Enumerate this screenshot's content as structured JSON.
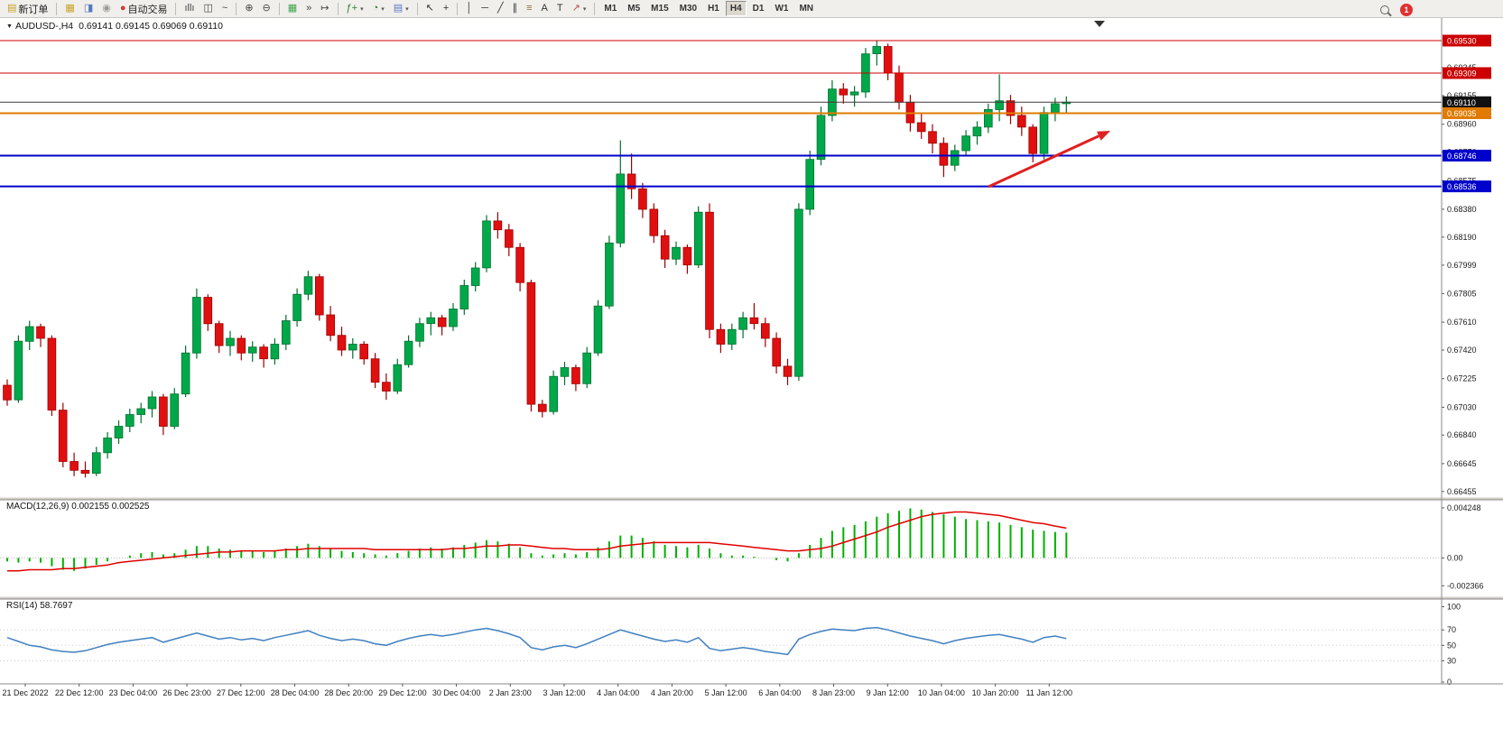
{
  "toolbar": {
    "badge_count": "1",
    "active_timeframe": "H4",
    "timeframes": [
      "M1",
      "M5",
      "M15",
      "M30",
      "H1",
      "H4",
      "D1",
      "W1",
      "MN"
    ],
    "buttons": [
      {
        "name": "new-order-button",
        "icon": "order-ticket-icon",
        "glyph": "▤",
        "glyph_color": "#c9a227",
        "label": "新订单"
      },
      {
        "type": "sep"
      },
      {
        "name": "new-chart-button",
        "icon": "new-chart-icon",
        "glyph": "▦",
        "glyph_color": "#c9a227"
      },
      {
        "name": "profiles-button",
        "icon": "profiles-icon",
        "glyph": "◨",
        "glyph_color": "#5a77c0"
      },
      {
        "name": "refresh-button",
        "icon": "refresh-icon",
        "glyph": "◉",
        "glyph_color": "#9a9a9a"
      },
      {
        "name": "auto-trading-button",
        "icon": "auto-trading-icon",
        "glyph": "●",
        "glyph_color": "#d03838",
        "label": "自动交易"
      },
      {
        "type": "sep"
      },
      {
        "name": "bar-chart-button",
        "icon": "bar-chart-icon",
        "glyph": "ıllı",
        "glyph_color": "#444444"
      },
      {
        "name": "candlestick-chart-button",
        "icon": "candlestick-chart-icon",
        "glyph": "◫",
        "glyph_color": "#444444"
      },
      {
        "name": "line-chart-button",
        "icon": "line-chart-icon",
        "glyph": "~",
        "glyph_color": "#444444"
      },
      {
        "type": "sep"
      },
      {
        "name": "zoom-in-button",
        "icon": "zoom-in-icon",
        "glyph": "⊕",
        "glyph_color": "#444444"
      },
      {
        "name": "zoom-out-button",
        "icon": "zoom-out-icon",
        "glyph": "⊖",
        "glyph_color": "#444444"
      },
      {
        "type": "sep"
      },
      {
        "name": "tile-windows-button",
        "icon": "tile-windows-icon",
        "glyph": "▦",
        "glyph_color": "#3fa34d"
      },
      {
        "name": "auto-scroll-button",
        "icon": "auto-scroll-icon",
        "glyph": "»",
        "glyph_color": "#444444"
      },
      {
        "name": "chart-shift-button",
        "icon": "chart-shift-icon",
        "glyph": "↦",
        "glyph_color": "#444444"
      },
      {
        "type": "sep"
      },
      {
        "name": "indicators-button",
        "icon": "indicators-icon",
        "glyph": "ƒ+",
        "glyph_color": "#2e7d32",
        "dropdown": true
      },
      {
        "name": "periods-button",
        "icon": "periods-clock-icon",
        "glyph": "◔",
        "glyph_color": "#2e7d32",
        "dropdown": true
      },
      {
        "name": "templates-button",
        "icon": "templates-icon",
        "glyph": "▤",
        "glyph_color": "#5a77c0",
        "dropdown": true
      },
      {
        "type": "sep"
      },
      {
        "name": "cursor-button",
        "icon": "cursor-icon",
        "glyph": "↖",
        "glyph_color": "#333333"
      },
      {
        "name": "crosshair-button",
        "icon": "crosshair-icon",
        "glyph": "+",
        "glyph_color": "#333333"
      },
      {
        "type": "sep"
      },
      {
        "name": "vertical-line-button",
        "icon": "vertical-line-icon",
        "glyph": "│",
        "glyph_color": "#333333"
      },
      {
        "name": "horizontal-line-button",
        "icon": "horizontal-line-icon",
        "glyph": "─",
        "glyph_color": "#333333"
      },
      {
        "name": "trendline-button",
        "icon": "trendline-icon",
        "glyph": "╱",
        "glyph_color": "#333333"
      },
      {
        "name": "channel-button",
        "icon": "equidistant-channel-icon",
        "glyph": "∥",
        "glyph_color": "#333333"
      },
      {
        "name": "fibonacci-button",
        "icon": "fibonacci-icon",
        "glyph": "≡",
        "glyph_color": "#8a6d3b"
      },
      {
        "name": "text-button",
        "icon": "text-icon",
        "glyph": "A",
        "glyph_color": "#333333"
      },
      {
        "name": "label-button",
        "icon": "text-label-icon",
        "glyph": "T",
        "glyph_color": "#333333"
      },
      {
        "name": "shapes-button",
        "icon": "arrow-object-icon",
        "glyph": "↗",
        "glyph_color": "#c05050",
        "dropdown": true
      },
      {
        "type": "sep"
      }
    ]
  },
  "chart": {
    "collapse_icon": "▼",
    "symbol_title": "AUDUSD-,H4",
    "ohlc_text": "0.69141 0.69145 0.69069 0.69110",
    "macd_label": "MACD(12,26,9) 0.002155 0.002525",
    "rsi_label": "RSI(14) 58.7697"
  },
  "chart_data": {
    "type": "candlestick",
    "symbol": "AUDUSD",
    "timeframe": "H4",
    "ylim": [
      0.66417,
      0.69684
    ],
    "price_ticks": [
      "0.69345",
      "0.69155",
      "0.68960",
      "0.68770",
      "0.68575",
      "0.68380",
      "0.68190",
      "0.67999",
      "0.67805",
      "0.67610",
      "0.67420",
      "0.67225",
      "0.67030",
      "0.66840",
      "0.66645",
      "0.66455"
    ],
    "price_lines": [
      {
        "value": 0.6953,
        "color": "#cc0000",
        "width": 1,
        "box": "#cc0000"
      },
      {
        "value": 0.69309,
        "color": "#cc0000",
        "width": 1,
        "box": "#cc0000"
      },
      {
        "value": 0.6911,
        "color": "#3a3a3a",
        "width": 1,
        "box": "#111111",
        "current": true
      },
      {
        "value": 0.69035,
        "color": "#e07b00",
        "width": 2,
        "box": "#e07b00"
      },
      {
        "value": 0.68746,
        "color": "#0000cc",
        "width": 2,
        "box": "#0000cc"
      },
      {
        "value": 0.68536,
        "color": "#0000cc",
        "width": 2,
        "box": "#0000cc"
      }
    ],
    "candles": [
      [
        0.6718,
        0.6722,
        0.6704,
        0.6708
      ],
      [
        0.6708,
        0.6752,
        0.6706,
        0.6748
      ],
      [
        0.6748,
        0.6762,
        0.6742,
        0.6758
      ],
      [
        0.6758,
        0.676,
        0.6744,
        0.675
      ],
      [
        0.675,
        0.6752,
        0.6697,
        0.6701
      ],
      [
        0.6701,
        0.6706,
        0.6662,
        0.6666
      ],
      [
        0.6666,
        0.6672,
        0.6656,
        0.666
      ],
      [
        0.666,
        0.6666,
        0.6655,
        0.6658
      ],
      [
        0.6658,
        0.6676,
        0.6656,
        0.6672
      ],
      [
        0.6672,
        0.6686,
        0.6668,
        0.6682
      ],
      [
        0.6682,
        0.6694,
        0.6678,
        0.669
      ],
      [
        0.669,
        0.6702,
        0.6686,
        0.6698
      ],
      [
        0.6698,
        0.6706,
        0.6692,
        0.6702
      ],
      [
        0.6702,
        0.6714,
        0.6696,
        0.671
      ],
      [
        0.671,
        0.6712,
        0.6684,
        0.669
      ],
      [
        0.669,
        0.6716,
        0.6688,
        0.6712
      ],
      [
        0.6712,
        0.6745,
        0.671,
        0.674
      ],
      [
        0.674,
        0.6784,
        0.6736,
        0.6778
      ],
      [
        0.6778,
        0.678,
        0.6755,
        0.676
      ],
      [
        0.676,
        0.6762,
        0.674,
        0.6745
      ],
      [
        0.6745,
        0.6755,
        0.6738,
        0.675
      ],
      [
        0.675,
        0.6752,
        0.6735,
        0.674
      ],
      [
        0.674,
        0.6748,
        0.6734,
        0.6744
      ],
      [
        0.6744,
        0.6746,
        0.673,
        0.6736
      ],
      [
        0.6736,
        0.675,
        0.6732,
        0.6746
      ],
      [
        0.6746,
        0.6766,
        0.6742,
        0.6762
      ],
      [
        0.6762,
        0.6784,
        0.6758,
        0.678
      ],
      [
        0.678,
        0.6796,
        0.6776,
        0.6792
      ],
      [
        0.6792,
        0.6794,
        0.6762,
        0.6766
      ],
      [
        0.6766,
        0.6772,
        0.6748,
        0.6752
      ],
      [
        0.6752,
        0.6758,
        0.6738,
        0.6742
      ],
      [
        0.6742,
        0.675,
        0.6736,
        0.6746
      ],
      [
        0.6746,
        0.6748,
        0.6732,
        0.6736
      ],
      [
        0.6736,
        0.674,
        0.6716,
        0.672
      ],
      [
        0.672,
        0.6726,
        0.6708,
        0.6714
      ],
      [
        0.6714,
        0.6736,
        0.6712,
        0.6732
      ],
      [
        0.6732,
        0.6752,
        0.673,
        0.6748
      ],
      [
        0.6748,
        0.6764,
        0.6744,
        0.676
      ],
      [
        0.676,
        0.6768,
        0.6752,
        0.6764
      ],
      [
        0.6764,
        0.6766,
        0.6752,
        0.6758
      ],
      [
        0.6758,
        0.6774,
        0.6755,
        0.677
      ],
      [
        0.677,
        0.679,
        0.6766,
        0.6786
      ],
      [
        0.6786,
        0.6802,
        0.6782,
        0.6798
      ],
      [
        0.6798,
        0.6834,
        0.6795,
        0.683
      ],
      [
        0.683,
        0.6836,
        0.6818,
        0.6824
      ],
      [
        0.6824,
        0.6828,
        0.6806,
        0.6812
      ],
      [
        0.6812,
        0.6815,
        0.6782,
        0.6788
      ],
      [
        0.6788,
        0.679,
        0.67,
        0.6705
      ],
      [
        0.6705,
        0.6708,
        0.6696,
        0.67
      ],
      [
        0.67,
        0.6728,
        0.6698,
        0.6724
      ],
      [
        0.6724,
        0.6734,
        0.6718,
        0.673
      ],
      [
        0.673,
        0.6732,
        0.6714,
        0.6719
      ],
      [
        0.6719,
        0.6744,
        0.6716,
        0.674
      ],
      [
        0.674,
        0.6776,
        0.6738,
        0.6772
      ],
      [
        0.6772,
        0.682,
        0.677,
        0.6815
      ],
      [
        0.6815,
        0.6885,
        0.6812,
        0.6862
      ],
      [
        0.6862,
        0.6876,
        0.6845,
        0.6852
      ],
      [
        0.6852,
        0.6856,
        0.6832,
        0.6838
      ],
      [
        0.6838,
        0.6842,
        0.6815,
        0.682
      ],
      [
        0.682,
        0.6824,
        0.6798,
        0.6804
      ],
      [
        0.6804,
        0.6816,
        0.68,
        0.6812
      ],
      [
        0.6812,
        0.6814,
        0.6794,
        0.68
      ],
      [
        0.68,
        0.684,
        0.6798,
        0.6836
      ],
      [
        0.6836,
        0.6842,
        0.675,
        0.6756
      ],
      [
        0.6756,
        0.676,
        0.674,
        0.6746
      ],
      [
        0.6746,
        0.676,
        0.6742,
        0.6756
      ],
      [
        0.6756,
        0.6768,
        0.675,
        0.6764
      ],
      [
        0.6764,
        0.6774,
        0.6756,
        0.676
      ],
      [
        0.676,
        0.6764,
        0.6744,
        0.675
      ],
      [
        0.675,
        0.6754,
        0.6726,
        0.6731
      ],
      [
        0.6731,
        0.6736,
        0.6718,
        0.6724
      ],
      [
        0.6724,
        0.6842,
        0.6721,
        0.6838
      ],
      [
        0.6838,
        0.6878,
        0.6834,
        0.6872
      ],
      [
        0.6872,
        0.6908,
        0.6868,
        0.6902
      ],
      [
        0.6902,
        0.6926,
        0.6898,
        0.692
      ],
      [
        0.692,
        0.6924,
        0.691,
        0.6916
      ],
      [
        0.6916,
        0.6922,
        0.6908,
        0.6918
      ],
      [
        0.6918,
        0.6948,
        0.6914,
        0.6944
      ],
      [
        0.6944,
        0.6953,
        0.6936,
        0.6949
      ],
      [
        0.6949,
        0.6951,
        0.6926,
        0.6931
      ],
      [
        0.6931,
        0.6936,
        0.6906,
        0.6911
      ],
      [
        0.6911,
        0.6916,
        0.6891,
        0.6897
      ],
      [
        0.6897,
        0.6903,
        0.6886,
        0.6891
      ],
      [
        0.6891,
        0.6896,
        0.6876,
        0.6883
      ],
      [
        0.6883,
        0.6887,
        0.686,
        0.6868
      ],
      [
        0.6868,
        0.6882,
        0.6864,
        0.6878
      ],
      [
        0.6878,
        0.6892,
        0.6874,
        0.6888
      ],
      [
        0.6888,
        0.6898,
        0.6882,
        0.6894
      ],
      [
        0.6894,
        0.691,
        0.689,
        0.6906
      ],
      [
        0.6906,
        0.693,
        0.6898,
        0.6912
      ],
      [
        0.6912,
        0.6916,
        0.6896,
        0.6902
      ],
      [
        0.6902,
        0.6908,
        0.6888,
        0.6894
      ],
      [
        0.6894,
        0.6896,
        0.687,
        0.6876
      ],
      [
        0.6876,
        0.6908,
        0.6872,
        0.6904
      ],
      [
        0.6904,
        0.6914,
        0.6898,
        0.691
      ],
      [
        0.691,
        0.6915,
        0.6904,
        0.6911
      ]
    ],
    "time_labels": [
      "21 Dec 2022",
      "22 Dec 12:00",
      "23 Dec 04:00",
      "26 Dec 23:00",
      "27 Dec 12:00",
      "28 Dec 04:00",
      "28 Dec 20:00",
      "29 Dec 12:00",
      "30 Dec 04:00",
      "2 Jan 23:00",
      "3 Jan 12:00",
      "4 Jan 04:00",
      "4 Jan 20:00",
      "5 Jan 12:00",
      "6 Jan 04:00",
      "8 Jan 23:00",
      "9 Jan 12:00",
      "10 Jan 04:00",
      "10 Jan 20:00",
      "11 Jan 12:00"
    ],
    "macd": {
      "ylim": [
        -0.00326,
        0.00493
      ],
      "scale_labels": [
        "0.004248",
        "0.00",
        "-0.002366"
      ],
      "histogram": [
        -0.0003,
        -0.0004,
        -0.0003,
        -0.0004,
        -0.0007,
        -0.001,
        -0.0011,
        -0.0009,
        -0.0006,
        -0.0003,
        0.0,
        0.0002,
        0.0004,
        0.0005,
        0.0003,
        0.0004,
        0.0007,
        0.001,
        0.001,
        0.0008,
        0.0007,
        0.0006,
        0.0006,
        0.0005,
        0.0006,
        0.0008,
        0.001,
        0.0012,
        0.001,
        0.0008,
        0.0006,
        0.0005,
        0.0004,
        0.0003,
        0.0002,
        0.0004,
        0.0006,
        0.0008,
        0.0009,
        0.0008,
        0.0009,
        0.0011,
        0.0013,
        0.0015,
        0.0014,
        0.0012,
        0.0009,
        0.0004,
        0.0002,
        0.0003,
        0.0004,
        0.0003,
        0.0005,
        0.0009,
        0.0014,
        0.0019,
        0.0019,
        0.0017,
        0.0014,
        0.0011,
        0.001,
        0.0009,
        0.0011,
        0.0008,
        0.0004,
        0.0002,
        0.0002,
        0.0001,
        0.0,
        -0.0002,
        -0.0003,
        0.0004,
        0.0011,
        0.0017,
        0.0023,
        0.0026,
        0.0028,
        0.0031,
        0.0035,
        0.0038,
        0.004,
        0.0042,
        0.0041,
        0.0039,
        0.0037,
        0.0035,
        0.0033,
        0.0032,
        0.0031,
        0.003,
        0.0028,
        0.0026,
        0.0024,
        0.0023,
        0.0022,
        0.002155
      ],
      "signal": [
        -0.0011,
        -0.0011,
        -0.001,
        -0.001,
        -0.001,
        -0.0009,
        -0.0009,
        -0.0008,
        -0.0007,
        -0.0006,
        -0.0004,
        -0.0003,
        -0.0002,
        -0.0001,
        0.0,
        0.0001,
        0.0002,
        0.0003,
        0.0004,
        0.0005,
        0.0005,
        0.0006,
        0.0006,
        0.0006,
        0.0006,
        0.0007,
        0.0007,
        0.0008,
        0.0008,
        0.0008,
        0.0008,
        0.0008,
        0.0008,
        0.0007,
        0.0007,
        0.0007,
        0.0007,
        0.0007,
        0.0007,
        0.0007,
        0.0008,
        0.0008,
        0.0009,
        0.001,
        0.001,
        0.0011,
        0.0011,
        0.001,
        0.0009,
        0.0008,
        0.0008,
        0.0007,
        0.0007,
        0.0007,
        0.0008,
        0.001,
        0.0011,
        0.0012,
        0.0013,
        0.0013,
        0.0013,
        0.0013,
        0.0013,
        0.0013,
        0.0012,
        0.0011,
        0.001,
        0.0009,
        0.0008,
        0.0007,
        0.0006,
        0.0006,
        0.0007,
        0.0008,
        0.001,
        0.0013,
        0.0016,
        0.0019,
        0.0022,
        0.0026,
        0.0029,
        0.0032,
        0.0035,
        0.0037,
        0.0038,
        0.0039,
        0.0039,
        0.0038,
        0.0037,
        0.0036,
        0.0034,
        0.0032,
        0.003,
        0.0029,
        0.0027,
        0.002525
      ]
    },
    "rsi": {
      "ylim": [
        0,
        110
      ],
      "levels": [
        70,
        50,
        30
      ],
      "scale_labels": [
        "100",
        "70",
        "50",
        "30",
        "0"
      ],
      "values": [
        60,
        55,
        50,
        48,
        44,
        42,
        41,
        43,
        47,
        51,
        54,
        56,
        58,
        60,
        54,
        58,
        62,
        66,
        62,
        58,
        60,
        57,
        59,
        56,
        60,
        63,
        66,
        69,
        63,
        59,
        56,
        58,
        56,
        52,
        50,
        55,
        59,
        62,
        64,
        62,
        64,
        67,
        70,
        72,
        69,
        65,
        60,
        47,
        44,
        48,
        50,
        47,
        52,
        58,
        64,
        70,
        66,
        62,
        58,
        55,
        57,
        54,
        60,
        46,
        43,
        45,
        47,
        45,
        42,
        40,
        38,
        58,
        64,
        68,
        71,
        70,
        69,
        72,
        73,
        70,
        66,
        62,
        59,
        56,
        52,
        56,
        59,
        61,
        63,
        64,
        61,
        58,
        54,
        60,
        62,
        58.77
      ]
    },
    "annotations": {
      "arrow": {
        "from": [
          1095,
          207
        ],
        "to": [
          1230,
          145
        ],
        "color": "#e02020"
      },
      "shift_marker_x": 1218
    },
    "colors": {
      "bull": "#00a84a",
      "bull_stroke": "#00702f",
      "bear": "#e01010",
      "bear_stroke": "#9e0000",
      "macd_hist": "#00b000",
      "macd_signal": "#e00000",
      "rsi_line": "#4080c0",
      "bg": "#ffffff",
      "axis_text": "#1a1a1a"
    }
  }
}
